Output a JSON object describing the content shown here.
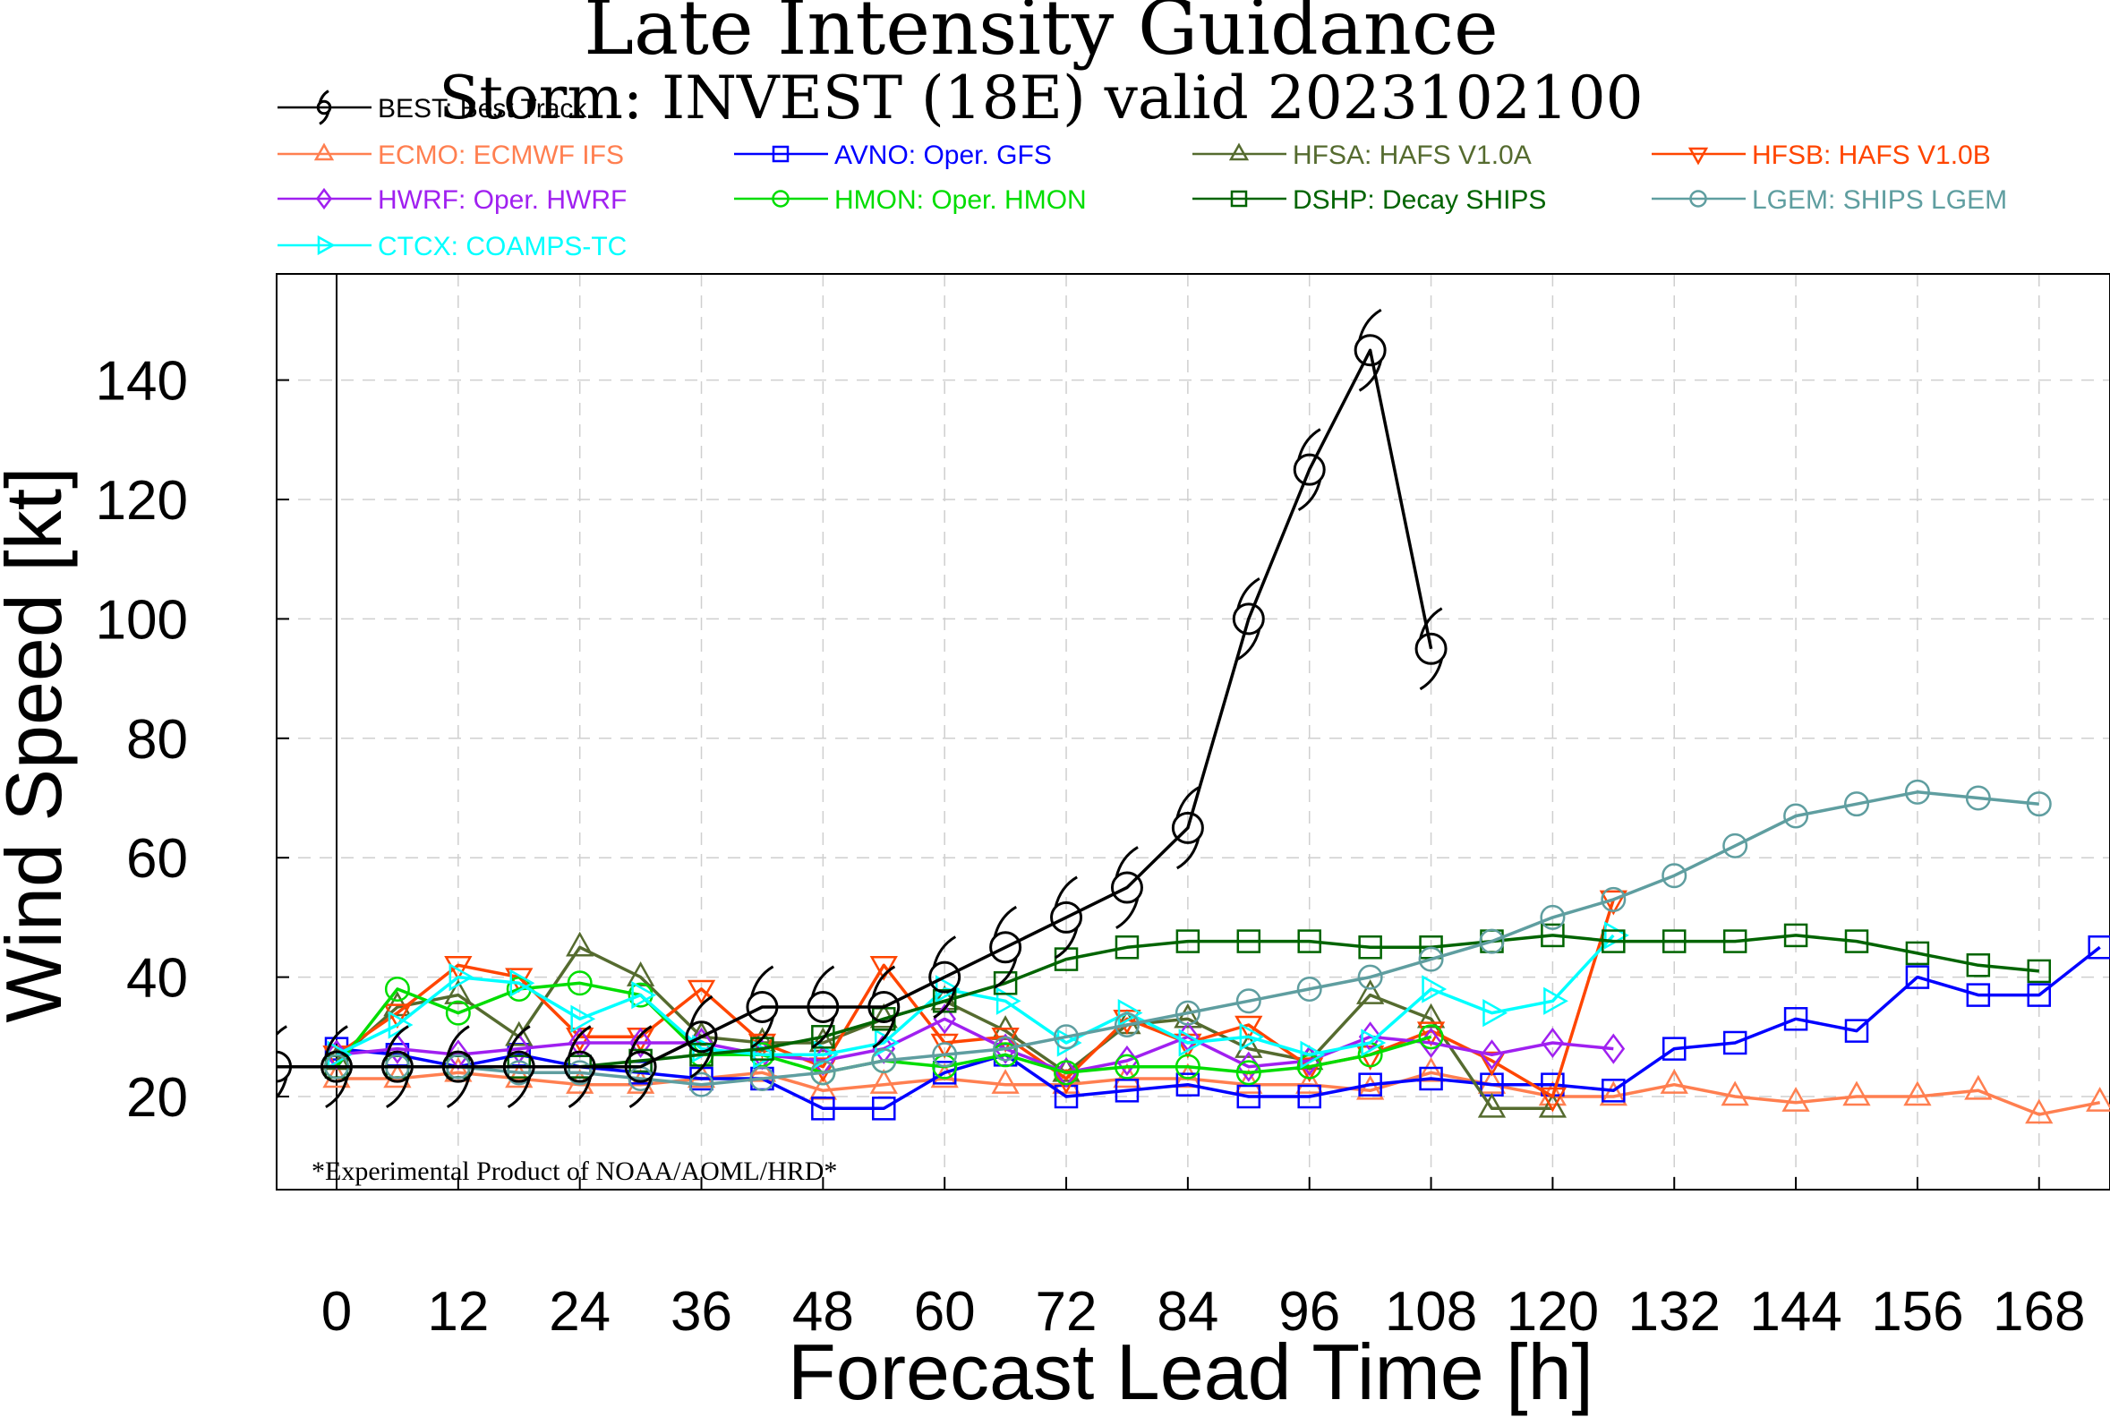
{
  "title": "Late Intensity Guidance",
  "subtitle": "Storm: INVEST (18E) valid 2023102100",
  "footnote": "*Experimental Product of NOAA/AOML/HRD*",
  "chart_data": {
    "type": "line",
    "title": "Late Intensity Guidance",
    "subtitle": "Storm: INVEST (18E) valid 2023102100",
    "xlabel": "Forecast Lead Time [h]",
    "ylabel": "Wind Speed [kt]",
    "xlim": [
      -10,
      174
    ],
    "ylim": [
      5,
      158
    ],
    "xticks": [
      0,
      12,
      24,
      36,
      48,
      60,
      72,
      84,
      96,
      108,
      120,
      132,
      144,
      156,
      168
    ],
    "yticks": [
      20,
      40,
      60,
      80,
      100,
      120,
      140
    ],
    "grid": true,
    "legend_position": "top",
    "series": [
      {
        "name": "BEST: Best Track",
        "color": "#000000",
        "marker": "hurricane",
        "x": [
          -6,
          0,
          6,
          12,
          18,
          24,
          30,
          36,
          42,
          48,
          54,
          60,
          66,
          72,
          78,
          84,
          90,
          96,
          102,
          108
        ],
        "y": [
          25,
          25,
          25,
          25,
          25,
          25,
          25,
          30,
          35,
          35,
          35,
          40,
          45,
          50,
          55,
          65,
          100,
          125,
          145,
          95
        ]
      },
      {
        "name": "ECMO: ECMWF IFS",
        "color": "#FF7F50",
        "marker": "triangle",
        "x": [
          0,
          6,
          12,
          18,
          24,
          30,
          36,
          42,
          48,
          54,
          60,
          66,
          72,
          78,
          84,
          90,
          96,
          102,
          108,
          114,
          120,
          126,
          132,
          138,
          144,
          150,
          156,
          162,
          168,
          174
        ],
        "y": [
          23,
          23,
          24,
          23,
          22,
          22,
          23,
          24,
          21,
          22,
          23,
          22,
          22,
          23,
          23,
          22,
          22,
          21,
          24,
          22,
          20,
          20,
          22,
          20,
          19,
          20,
          20,
          21,
          17,
          19
        ]
      },
      {
        "name": "AVNO: Oper. GFS",
        "color": "#0000FF",
        "marker": "square",
        "x": [
          0,
          6,
          12,
          18,
          24,
          30,
          36,
          42,
          48,
          54,
          60,
          66,
          72,
          78,
          84,
          90,
          96,
          102,
          108,
          114,
          120,
          126,
          132,
          138,
          144,
          150,
          156,
          162,
          168,
          174
        ],
        "y": [
          28,
          27,
          25,
          27,
          25,
          24,
          23,
          23,
          18,
          18,
          24,
          27,
          20,
          21,
          22,
          20,
          20,
          22,
          23,
          22,
          22,
          21,
          28,
          29,
          33,
          31,
          40,
          37,
          37,
          45
        ]
      },
      {
        "name": "HFSA: HAFS V1.0A",
        "color": "#556B2F",
        "marker": "triangle",
        "x": [
          0,
          6,
          12,
          18,
          24,
          30,
          36,
          42,
          48,
          54,
          60,
          66,
          72,
          78,
          84,
          90,
          96,
          102,
          108,
          114,
          120
        ],
        "y": [
          26,
          35,
          37,
          30,
          45,
          40,
          30,
          29,
          29,
          33,
          36,
          31,
          24,
          32,
          33,
          28,
          26,
          37,
          33,
          18,
          18
        ]
      },
      {
        "name": "HFSB: HAFS V1.0B",
        "color": "#FF4500",
        "marker": "triangle-down",
        "x": [
          0,
          6,
          12,
          18,
          24,
          30,
          36,
          42,
          48,
          54,
          60,
          66,
          72,
          78,
          84,
          90,
          96,
          102,
          108,
          114,
          120,
          126
        ],
        "y": [
          27,
          34,
          42,
          40,
          30,
          30,
          38,
          29,
          25,
          42,
          29,
          30,
          23,
          33,
          29,
          32,
          25,
          27,
          31,
          26,
          20,
          53
        ]
      },
      {
        "name": "HWRF: Oper. HWRF",
        "color": "#A020F0",
        "marker": "diamond",
        "x": [
          0,
          6,
          12,
          18,
          24,
          30,
          36,
          42,
          48,
          54,
          60,
          66,
          72,
          78,
          84,
          90,
          96,
          102,
          108,
          114,
          120,
          126
        ],
        "y": [
          27,
          28,
          27,
          28,
          29,
          29,
          29,
          27,
          26,
          28,
          33,
          28,
          24,
          26,
          30,
          25,
          26,
          30,
          29,
          27,
          29,
          28
        ]
      },
      {
        "name": "HMON: Oper. HMON",
        "color": "#00DD00",
        "marker": "circle",
        "x": [
          0,
          6,
          12,
          18,
          24,
          30,
          36,
          42,
          48,
          54,
          60,
          66,
          72,
          78,
          84,
          90,
          96,
          102,
          108
        ],
        "y": [
          25,
          38,
          34,
          38,
          39,
          37,
          27,
          27,
          24,
          26,
          25,
          27,
          24,
          25,
          25,
          24,
          25,
          27,
          30
        ]
      },
      {
        "name": "DSHP: Decay SHIPS",
        "color": "#006400",
        "marker": "square",
        "x": [
          0,
          6,
          12,
          18,
          24,
          30,
          36,
          42,
          48,
          54,
          60,
          66,
          72,
          78,
          84,
          90,
          96,
          102,
          108,
          114,
          120,
          126,
          132,
          138,
          144,
          150,
          156,
          162,
          168
        ],
        "y": [
          25,
          25,
          25,
          25,
          25,
          26,
          27,
          28,
          30,
          33,
          36,
          39,
          43,
          45,
          46,
          46,
          46,
          45,
          45,
          46,
          47,
          46,
          46,
          46,
          47,
          46,
          44,
          42,
          41
        ]
      },
      {
        "name": "LGEM: SHIPS LGEM",
        "color": "#5F9EA0",
        "marker": "circle",
        "x": [
          0,
          6,
          12,
          18,
          24,
          30,
          36,
          42,
          48,
          54,
          60,
          66,
          72,
          78,
          84,
          90,
          96,
          102,
          108,
          114,
          120,
          126,
          132,
          138,
          144,
          150,
          156,
          162,
          168
        ],
        "y": [
          25,
          25,
          25,
          24,
          24,
          23,
          22,
          23,
          24,
          26,
          27,
          28,
          30,
          32,
          34,
          36,
          38,
          40,
          43,
          46,
          50,
          53,
          57,
          62,
          67,
          69,
          71,
          70,
          69
        ]
      },
      {
        "name": "CTCX: COAMPS-TC",
        "color": "#00FFFF",
        "marker": "triangle-right",
        "x": [
          0,
          6,
          12,
          18,
          24,
          30,
          36,
          42,
          48,
          54,
          60,
          66,
          72,
          78,
          84,
          90,
          96,
          102,
          108,
          114,
          120,
          126
        ],
        "y": [
          27,
          32,
          40,
          39,
          33,
          37,
          28,
          27,
          27,
          29,
          38,
          36,
          29,
          34,
          29,
          30,
          27,
          29,
          38,
          34,
          36,
          47
        ]
      }
    ]
  }
}
